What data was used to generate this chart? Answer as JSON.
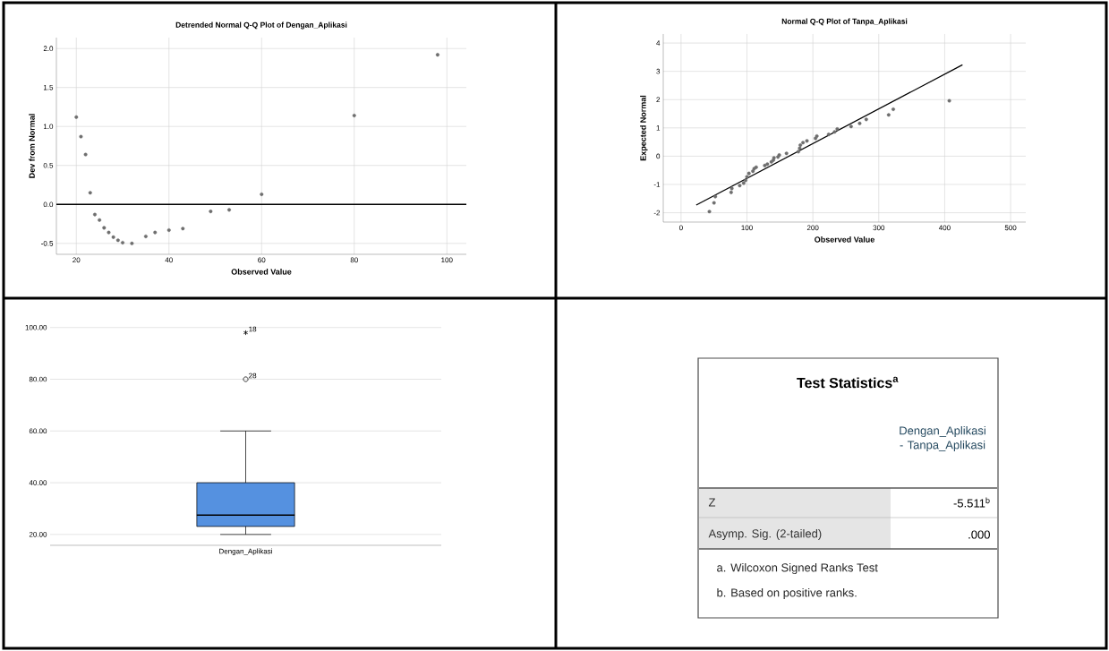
{
  "chart_data": [
    {
      "type": "scatter",
      "title": "Detrended Normal Q-Q Plot of Dengan_Aplikasi",
      "xlabel": "Observed Value",
      "ylabel": "Dev from Normal",
      "series": [
        {
          "type": "scatter",
          "color": "#6e6e6e",
          "x": [
            20,
            21,
            22,
            23,
            24,
            25,
            26,
            27,
            28,
            29,
            30,
            32,
            35,
            37,
            40,
            43,
            49,
            53,
            60,
            80,
            98
          ],
          "values": [
            1.12,
            0.87,
            0.64,
            0.15,
            -0.13,
            -0.2,
            -0.3,
            -0.36,
            -0.42,
            -0.46,
            -0.49,
            -0.5,
            -0.41,
            -0.36,
            -0.33,
            -0.31,
            -0.09,
            -0.07,
            0.13,
            1.14,
            1.92
          ]
        }
      ],
      "xlim": [
        15.7,
        104.2
      ],
      "ylim": [
        -0.64,
        2.14
      ],
      "xticks": [
        20,
        40,
        60,
        80,
        100
      ],
      "yticks": [
        {
          "value": -0.5,
          "label": "-0.5"
        },
        {
          "value": 0,
          "label": "0.0"
        },
        {
          "value": 0.5,
          "label": "0.5"
        },
        {
          "value": 1,
          "label": "1.0"
        },
        {
          "value": 1.5,
          "label": "1.5"
        },
        {
          "value": 2,
          "label": "2.0"
        }
      ],
      "ref_lines": [
        {
          "axis": "y",
          "value": 0,
          "color": "#000000"
        }
      ],
      "grid": true,
      "marker": "circle"
    },
    {
      "type": "scatter",
      "title": "Normal Q-Q Plot of Tanpa_Aplikasi",
      "xlabel": "Observed Value",
      "ylabel": "Expected Normal",
      "series": [
        {
          "type": "scatter",
          "color": "#6e6e6e",
          "x": [
            43,
            50,
            52,
            76,
            77,
            89,
            95,
            98,
            100,
            103,
            109,
            111,
            114,
            127,
            131,
            137,
            140,
            141,
            147,
            149,
            160,
            178,
            180,
            181,
            185,
            191,
            204,
            206,
            224,
            233,
            237,
            258,
            271,
            281,
            315,
            322,
            407
          ],
          "values": [
            -1.96,
            -1.65,
            -1.43,
            -1.28,
            -1.14,
            -1.04,
            -0.95,
            -0.85,
            -0.73,
            -0.61,
            -0.53,
            -0.44,
            -0.39,
            -0.33,
            -0.28,
            -0.2,
            -0.14,
            -0.06,
            -0.03,
            0.04,
            0.1,
            0.16,
            0.28,
            0.39,
            0.48,
            0.54,
            0.63,
            0.71,
            0.77,
            0.86,
            0.96,
            1.05,
            1.16,
            1.3,
            1.46,
            1.66,
            1.96
          ]
        },
        {
          "type": "line",
          "color": "#000000",
          "marker": "none",
          "x": [
            23,
            427
          ],
          "values": [
            -1.73,
            3.23
          ]
        }
      ],
      "xlim": [
        -27,
        523
      ],
      "ylim": [
        -2.33,
        4.32
      ],
      "xticks": [
        0,
        100,
        200,
        300,
        400,
        500
      ],
      "yticks": [
        -2,
        -1,
        0,
        1,
        2,
        3,
        4
      ],
      "grid": true,
      "marker": "circle"
    },
    {
      "type": "box",
      "categories": [
        "Dengan_Aplikasi"
      ],
      "color": "#5591e0",
      "boxes": [
        {
          "low": 20,
          "q1": 23.1,
          "median": 27.5,
          "q3": 40,
          "high": 60,
          "outliers": [
            80,
            98
          ]
        }
      ],
      "ylim": [
        15.8,
        100.6
      ],
      "yticks": [
        {
          "value": 20,
          "label": "20.00"
        },
        {
          "value": 40,
          "label": "40.00"
        },
        {
          "value": 60,
          "label": "60.00"
        },
        {
          "value": 80,
          "label": "80.00"
        },
        {
          "value": 100,
          "label": "100.00"
        }
      ],
      "annotations": [
        "28",
        "18"
      ],
      "grid": "y"
    },
    {
      "type": "other",
      "title": "Test Statistics$^{a}$",
      "subtitle": "Dengan_Aplikasi - Tanpa_Aplikasi",
      "categories": [
        "Z",
        "Asymp. Sig. (2-tailed)"
      ],
      "value_labels": [
        "-5.511$^{b}$",
        ".000"
      ],
      "annotations": [
        "a. Wilcoxon Signed Ranks Test",
        "b. Based on positive ranks."
      ]
    }
  ]
}
